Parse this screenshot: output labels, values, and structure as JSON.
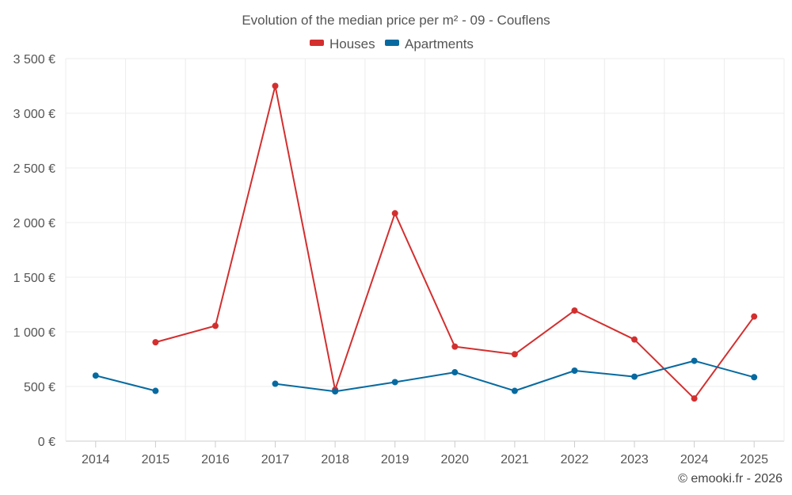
{
  "chart_data": {
    "type": "line",
    "title": "Evolution of the median price per m² - 09 - Couflens",
    "categories": [
      "2014",
      "2015",
      "2016",
      "2017",
      "2018",
      "2019",
      "2020",
      "2021",
      "2022",
      "2023",
      "2024",
      "2025"
    ],
    "series": [
      {
        "name": "Houses",
        "color": "#d32f2f",
        "values": [
          null,
          905,
          1055,
          3250,
          470,
          2085,
          865,
          795,
          1195,
          930,
          390,
          1140
        ]
      },
      {
        "name": "Apartments",
        "color": "#066aa0",
        "values": [
          600,
          460,
          null,
          525,
          455,
          540,
          630,
          460,
          645,
          590,
          735,
          585
        ]
      }
    ],
    "ylim": [
      0,
      3500
    ],
    "yticks": [
      0,
      500,
      1000,
      1500,
      2000,
      2500,
      3000,
      3500
    ],
    "ytick_labels": [
      "0 €",
      "500 €",
      "1 000 €",
      "1 500 €",
      "2 000 €",
      "2 500 €",
      "3 000 €",
      "3 500 €"
    ],
    "legend_position": "top-center",
    "grid": true,
    "xlabel": "",
    "ylabel": ""
  },
  "footer": {
    "credit": "© emooki.fr - 2026"
  }
}
